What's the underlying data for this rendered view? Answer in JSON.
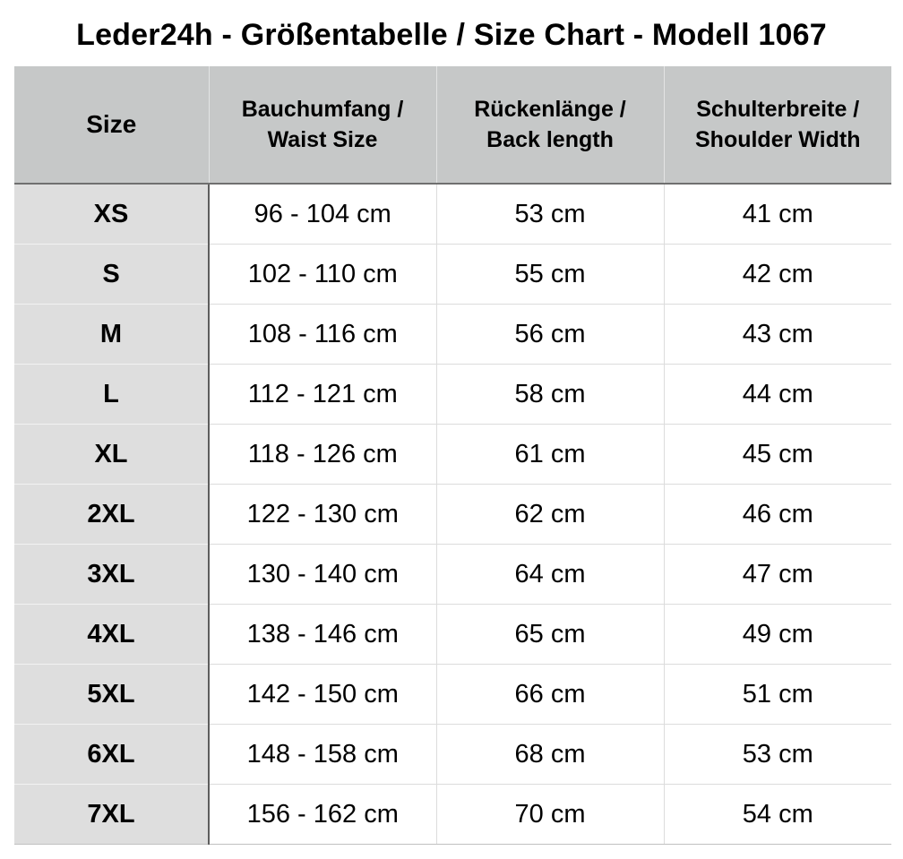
{
  "title": "Leder24h - Größentabelle / Size Chart - Modell 1067",
  "headers": {
    "size": "Size",
    "waist_line1": "Bauchumfang /",
    "waist_line2": "Waist Size",
    "back_line1": "Rückenlänge /",
    "back_line2": "Back length",
    "shoulder_line1": "Schulterbreite /",
    "shoulder_line2": "Shoulder Width"
  },
  "rows": [
    {
      "size": "XS",
      "waist": "96 - 104 cm",
      "back": "53 cm",
      "shoulder": "41 cm"
    },
    {
      "size": "S",
      "waist": "102 - 110 cm",
      "back": "55 cm",
      "shoulder": "42 cm"
    },
    {
      "size": "M",
      "waist": "108 - 116 cm",
      "back": "56 cm",
      "shoulder": "43 cm"
    },
    {
      "size": "L",
      "waist": "112 - 121 cm",
      "back": "58 cm",
      "shoulder": "44 cm"
    },
    {
      "size": "XL",
      "waist": "118 - 126 cm",
      "back": "61 cm",
      "shoulder": "45 cm"
    },
    {
      "size": "2XL",
      "waist": "122 - 130 cm",
      "back": "62 cm",
      "shoulder": "46 cm"
    },
    {
      "size": "3XL",
      "waist": "130 - 140 cm",
      "back": "64 cm",
      "shoulder": "47 cm"
    },
    {
      "size": "4XL",
      "waist": "138 - 146 cm",
      "back": "65 cm",
      "shoulder": "49 cm"
    },
    {
      "size": "5XL",
      "waist": "142 - 150 cm",
      "back": "66 cm",
      "shoulder": "51 cm"
    },
    {
      "size": "6XL",
      "waist": "148 - 158 cm",
      "back": "68 cm",
      "shoulder": "53 cm"
    },
    {
      "size": "7XL",
      "waist": "156 - 162 cm",
      "back": "70 cm",
      "shoulder": "54 cm"
    }
  ],
  "colors": {
    "header_background": "#c6c8c8",
    "size_column_background": "#dedede",
    "cell_background": "#ffffff",
    "text": "#000000"
  }
}
